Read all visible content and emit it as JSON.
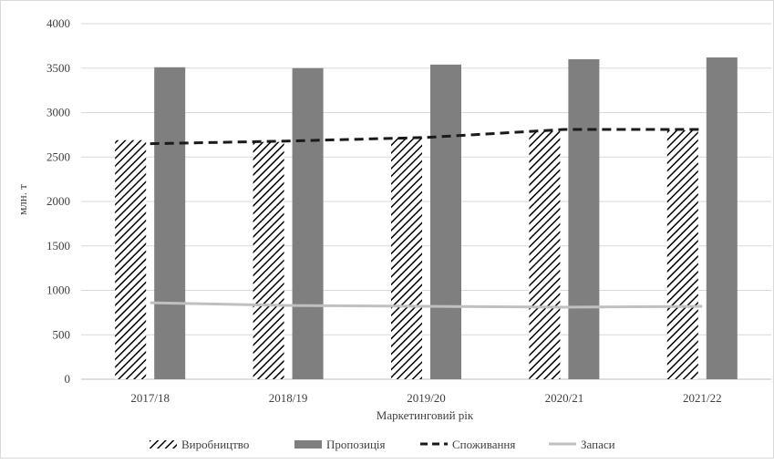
{
  "chart_data": {
    "type": "bar",
    "title": "",
    "xlabel": "Маркетинговий рік",
    "ylabel": "млн. т",
    "ylim": [
      0,
      4000
    ],
    "ytick_step": 500,
    "yticks": [
      "0",
      "500",
      "1000",
      "1500",
      "2000",
      "2500",
      "3000",
      "3500",
      "4000"
    ],
    "categories": [
      "2017/18",
      "2018/19",
      "2019/20",
      "2020/21",
      "2021/22"
    ],
    "grid": true,
    "legend_position": "bottom",
    "series": [
      {
        "name": "Виробництво",
        "type": "bar",
        "style": "hatched",
        "color": "#000000",
        "values": [
          2690,
          2670,
          2720,
          2790,
          2800
        ]
      },
      {
        "name": "Пропозиція",
        "type": "bar",
        "style": "solid",
        "color": "#7f7f7f",
        "values": [
          3510,
          3500,
          3540,
          3600,
          3620
        ]
      },
      {
        "name": "Споживання",
        "type": "line",
        "style": "dashed",
        "color": "#1a1a1a",
        "values": [
          2650,
          2680,
          2720,
          2810,
          2810
        ]
      },
      {
        "name": "Запаси",
        "type": "line",
        "style": "solid",
        "color": "#c0c0c0",
        "values": [
          860,
          830,
          820,
          810,
          820
        ]
      }
    ]
  }
}
